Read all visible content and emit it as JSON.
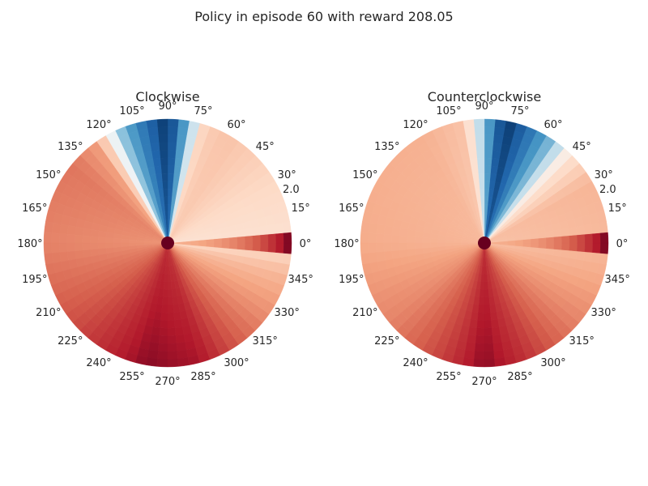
{
  "figure": {
    "suptitle": "Policy in episode 60 with reward 208.05"
  },
  "chart_data": [
    {
      "type": "heatmap",
      "projection": "polar",
      "title": "Clockwise",
      "theta_tick_labels": [
        "0°",
        "15°",
        "30°",
        "45°",
        "60°",
        "75°",
        "90°",
        "105°",
        "120°",
        "135°",
        "150°",
        "165°",
        "180°",
        "195°",
        "210°",
        "225°",
        "240°",
        "255°",
        "270°",
        "285°",
        "300°",
        "315°",
        "330°",
        "345°"
      ],
      "radial_tick_label": "2.0",
      "colormap": "RdBu",
      "theta_bins": 72,
      "r_bins": 16,
      "value_range": [
        -1,
        1
      ],
      "value_profile_by_angle_deg": [
        [
          0,
          0.14
        ],
        [
          30,
          0.2
        ],
        [
          60,
          0.3
        ],
        [
          72,
          0.25
        ],
        [
          80,
          -0.3
        ],
        [
          90,
          -0.95
        ],
        [
          105,
          -0.55
        ],
        [
          118,
          -0.05
        ],
        [
          125,
          0.45
        ],
        [
          140,
          0.6
        ],
        [
          180,
          0.55
        ],
        [
          220,
          0.72
        ],
        [
          260,
          0.92
        ],
        [
          285,
          0.88
        ],
        [
          320,
          0.55
        ],
        [
          345,
          0.35
        ],
        [
          360,
          0.14
        ]
      ],
      "max_abs_value_near_center": 1.0,
      "value_at_rim_deg_0": 1.0
    },
    {
      "type": "heatmap",
      "projection": "polar",
      "title": "Counterclockwise",
      "theta_tick_labels": [
        "0°",
        "15°",
        "30°",
        "45°",
        "60°",
        "75°",
        "90°",
        "105°",
        "120°",
        "135°",
        "150°",
        "165°",
        "180°",
        "195°",
        "210°",
        "225°",
        "240°",
        "255°",
        "270°",
        "285°",
        "300°",
        "315°",
        "330°",
        "345°"
      ],
      "radial_tick_label": "2.0",
      "colormap": "RdBu",
      "theta_bins": 72,
      "r_bins": 16,
      "value_range": [
        -1,
        1
      ],
      "value_profile_by_angle_deg": [
        [
          0,
          0.34
        ],
        [
          30,
          0.36
        ],
        [
          45,
          0.15
        ],
        [
          55,
          -0.25
        ],
        [
          68,
          -0.65
        ],
        [
          80,
          -0.95
        ],
        [
          90,
          -0.3
        ],
        [
          100,
          0.3
        ],
        [
          120,
          0.38
        ],
        [
          180,
          0.4
        ],
        [
          220,
          0.55
        ],
        [
          255,
          0.8
        ],
        [
          270,
          0.92
        ],
        [
          290,
          0.8
        ],
        [
          320,
          0.55
        ],
        [
          345,
          0.4
        ],
        [
          360,
          0.34
        ]
      ],
      "max_abs_value_near_center": 1.0,
      "value_at_rim_deg_0": 1.0
    }
  ]
}
